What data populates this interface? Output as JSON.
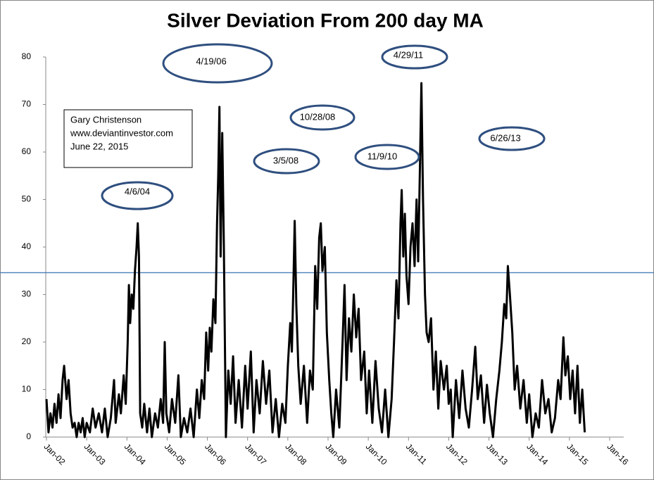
{
  "chart_data": {
    "type": "line",
    "title": "Silver Deviation From 200 day MA",
    "annotations": [
      "4/6/04",
      "4/19/06",
      "10/28/08",
      "3/5/08",
      "11/9/10",
      "4/29/11",
      "6/26/13"
    ],
    "note": [
      "Gary Christenson",
      "www.deviantinvestor.com",
      "June 22, 2015"
    ],
    "reference_line": 34.6,
    "xlim": [
      2002,
      2016
    ],
    "xticks": [
      {
        "value": 2002,
        "label": "Jan-02"
      },
      {
        "value": 2003,
        "label": "Jan-03"
      },
      {
        "value": 2004,
        "label": "Jan-04"
      },
      {
        "value": 2005,
        "label": "Jan-05"
      },
      {
        "value": 2006,
        "label": "Jan-06"
      },
      {
        "value": 2007,
        "label": "Jan-07"
      },
      {
        "value": 2008,
        "label": "Jan-08"
      },
      {
        "value": 2009,
        "label": "Jan-09"
      },
      {
        "value": 2010,
        "label": "Jan-10"
      },
      {
        "value": 2011,
        "label": "Jan-11"
      },
      {
        "value": 2012,
        "label": "Jan-12"
      },
      {
        "value": 2013,
        "label": "Jan-13"
      },
      {
        "value": 2014,
        "label": "Jan-14"
      },
      {
        "value": 2015,
        "label": "Jan-15"
      },
      {
        "value": 2016,
        "label": "Jan-16"
      }
    ],
    "ylim": [
      0,
      80
    ],
    "yticks": [
      0,
      10,
      20,
      30,
      40,
      50,
      60,
      70,
      80
    ],
    "color": "#000000",
    "x": [
      2002,
      2002.05,
      2002.1,
      2002.15,
      2002.2,
      2002.25,
      2002.3,
      2002.35,
      2002.4,
      2002.44,
      2002.5,
      2002.55,
      2002.6,
      2002.65,
      2002.7,
      2002.75,
      2002.8,
      2002.85,
      2002.9,
      2002.95,
      2003,
      2003.08,
      2003.15,
      2003.22,
      2003.3,
      2003.38,
      2003.45,
      2003.52,
      2003.6,
      2003.68,
      2003.72,
      2003.8,
      2003.85,
      2003.92,
      2003.97,
      2004.02,
      2004.05,
      2004.08,
      2004.12,
      2004.16,
      2004.2,
      2004.24,
      2004.27,
      2004.3,
      2004.33,
      2004.38,
      2004.43,
      2004.5,
      2004.56,
      2004.62,
      2004.7,
      2004.77,
      2004.84,
      2004.9,
      2004.94,
      2004.98,
      2005.05,
      2005.12,
      2005.2,
      2005.28,
      2005.34,
      2005.42,
      2005.5,
      2005.58,
      2005.66,
      2005.74,
      2005.8,
      2005.86,
      2005.92,
      2005.97,
      2006.02,
      2006.06,
      2006.1,
      2006.15,
      2006.2,
      2006.24,
      2006.27,
      2006.3,
      2006.33,
      2006.37,
      2006.41,
      2006.46,
      2006.52,
      2006.58,
      2006.64,
      2006.7,
      2006.78,
      2006.86,
      2006.94,
      2007,
      2007.08,
      2007.15,
      2007.22,
      2007.3,
      2007.38,
      2007.46,
      2007.54,
      2007.62,
      2007.7,
      2007.78,
      2007.86,
      2007.94,
      2008,
      2008.06,
      2008.1,
      2008.14,
      2008.17,
      2008.21,
      2008.26,
      2008.32,
      2008.4,
      2008.48,
      2008.55,
      2008.62,
      2008.68,
      2008.73,
      2008.78,
      2008.82,
      2008.86,
      2008.92,
      2008.97,
      2009.03,
      2009.08,
      2009.13,
      2009.2,
      2009.28,
      2009.36,
      2009.41,
      2009.46,
      2009.52,
      2009.58,
      2009.64,
      2009.7,
      2009.76,
      2009.82,
      2009.9,
      2009.96,
      2010.02,
      2010.1,
      2010.18,
      2010.26,
      2010.34,
      2010.42,
      2010.5,
      2010.58,
      2010.64,
      2010.7,
      2010.75,
      2010.8,
      2010.83,
      2010.87,
      2010.91,
      2010.95,
      2011,
      2011.05,
      2011.1,
      2011.15,
      2011.2,
      2011.24,
      2011.28,
      2011.32,
      2011.36,
      2011.41,
      2011.45,
      2011.5,
      2011.56,
      2011.62,
      2011.68,
      2011.74,
      2011.8,
      2011.88,
      2011.95,
      2012,
      2012.05,
      2012.1,
      2012.18,
      2012.26,
      2012.34,
      2012.42,
      2012.5,
      2012.58,
      2012.66,
      2012.72,
      2012.8,
      2012.88,
      2012.95,
      2013.02,
      2013.1,
      2013.18,
      2013.26,
      2013.32,
      2013.38,
      2013.43,
      2013.47,
      2013.52,
      2013.58,
      2013.64,
      2013.7,
      2013.78,
      2013.86,
      2013.94,
      2014,
      2014.08,
      2014.16,
      2014.24,
      2014.32,
      2014.4,
      2014.48,
      2014.56,
      2014.64,
      2014.72,
      2014.78,
      2014.85,
      2014.9,
      2014.96,
      2015.02,
      2015.08,
      2015.14,
      2015.2,
      2015.26,
      2015.32,
      2015.38
    ],
    "values": [
      8,
      1,
      5,
      2,
      7,
      3,
      9,
      4,
      12,
      15,
      8,
      12,
      5,
      2,
      3,
      0,
      3,
      1,
      4,
      0,
      3,
      1,
      6,
      2,
      5,
      1,
      6,
      0,
      4,
      12,
      3,
      9,
      5,
      13,
      7,
      20,
      32,
      24,
      30,
      27,
      35,
      40,
      45,
      38,
      5,
      2,
      7,
      1,
      6,
      0,
      5,
      2,
      8,
      3,
      20,
      5,
      1,
      8,
      3,
      13,
      0,
      4,
      1,
      6,
      0,
      10,
      4,
      12,
      8,
      22,
      14,
      23,
      18,
      29,
      24,
      45,
      55,
      69.5,
      38,
      64,
      40,
      0,
      14,
      7,
      17,
      3,
      12,
      2,
      15,
      6,
      18,
      1,
      12,
      5,
      16,
      7,
      14,
      1,
      8,
      0,
      7,
      3,
      15,
      24,
      18,
      33,
      45.5,
      28,
      15,
      7,
      15,
      3,
      14,
      10,
      36,
      27,
      42,
      45,
      35,
      40,
      22,
      12,
      5,
      0,
      10,
      2,
      20,
      32,
      12,
      25,
      18,
      30,
      21,
      27,
      12,
      18,
      5,
      14,
      3,
      16,
      6,
      1,
      10,
      0,
      8,
      20,
      33,
      25,
      45,
      52,
      38,
      47,
      34,
      28,
      40,
      45,
      36,
      50,
      37,
      55,
      74.5,
      50,
      30,
      22,
      20,
      25,
      10,
      18,
      6,
      16,
      10,
      15,
      7,
      10,
      0,
      12,
      4,
      14,
      6,
      2,
      10,
      19,
      8,
      13,
      3,
      11,
      5,
      0,
      8,
      14,
      20,
      28,
      25,
      36,
      30,
      22,
      10,
      15,
      6,
      12,
      3,
      9,
      0,
      5,
      2,
      12,
      5,
      8,
      1,
      4,
      12,
      8,
      21,
      13,
      17,
      8,
      14,
      5,
      15,
      3,
      10,
      1
    ]
  }
}
